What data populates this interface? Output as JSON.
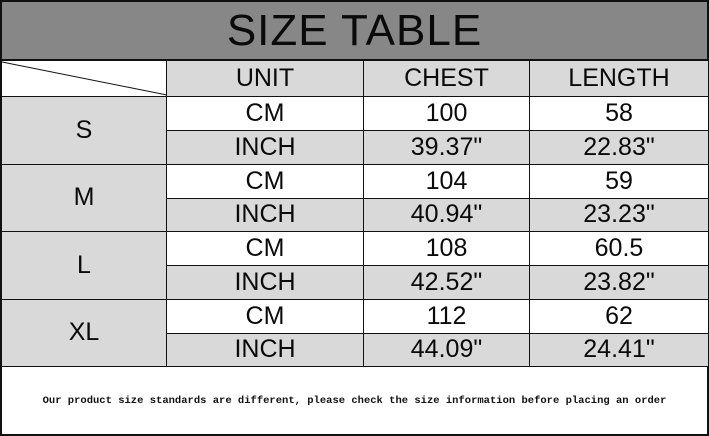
{
  "title": "SIZE TABLE",
  "headers": [
    "UNIT",
    "CHEST",
    "LENGTH"
  ],
  "rows": [
    {
      "size": "S",
      "cm": {
        "unit": "CM",
        "chest": "100",
        "length": "58"
      },
      "inch": {
        "unit": "INCH",
        "chest": "39.37\"",
        "length": "22.83\""
      }
    },
    {
      "size": "M",
      "cm": {
        "unit": "CM",
        "chest": "104",
        "length": "59"
      },
      "inch": {
        "unit": "INCH",
        "chest": "40.94\"",
        "length": "23.23\""
      }
    },
    {
      "size": "L",
      "cm": {
        "unit": "CM",
        "chest": "108",
        "length": "60.5"
      },
      "inch": {
        "unit": "INCH",
        "chest": "42.52\"",
        "length": "23.82\""
      }
    },
    {
      "size": "XL",
      "cm": {
        "unit": "CM",
        "chest": "112",
        "length": "62"
      },
      "inch": {
        "unit": "INCH",
        "chest": "44.09\"",
        "length": "24.41\""
      }
    }
  ],
  "footer": "Our product size standards are different, please check the size information before placing an order",
  "colors": {
    "title_bg": "#878787",
    "cell_gray": "#d9d9d9"
  }
}
